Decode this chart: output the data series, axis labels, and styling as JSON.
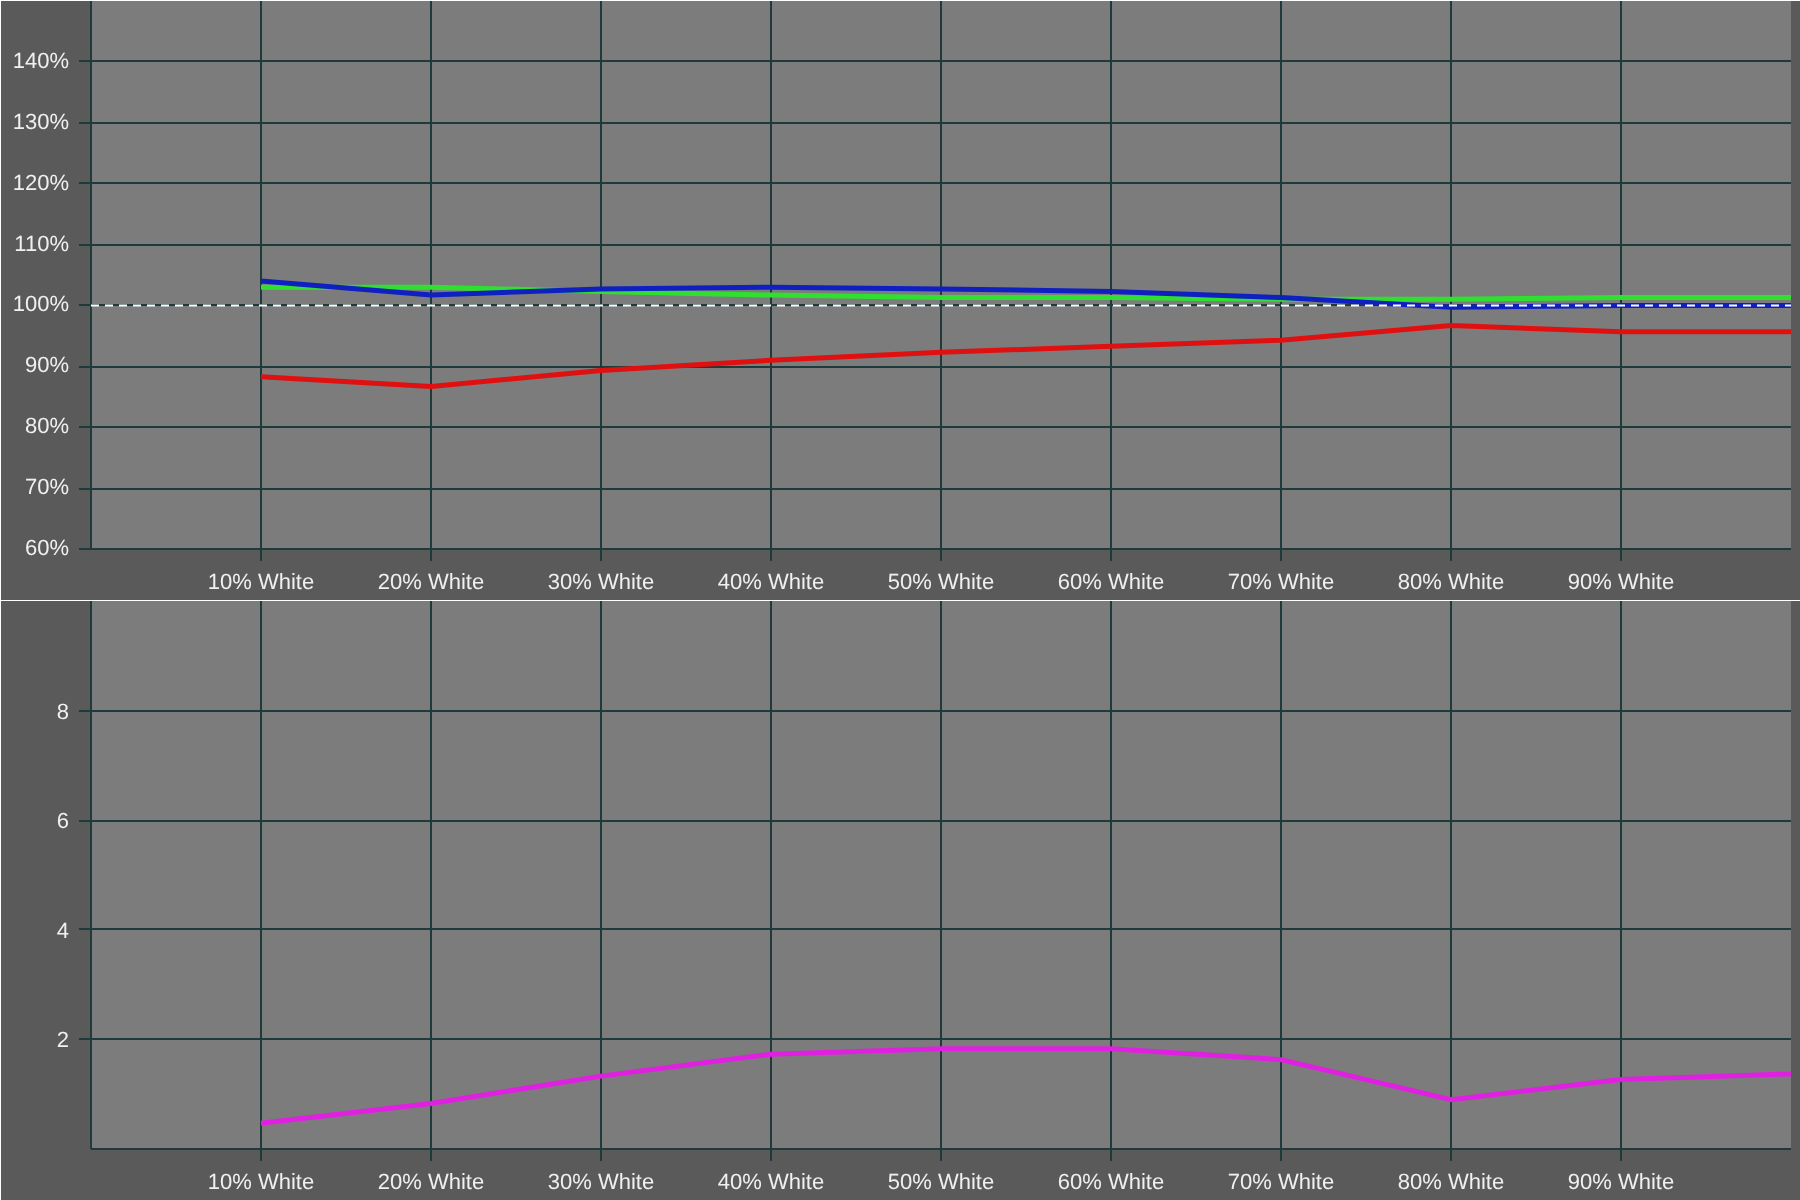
{
  "chart_data": [
    {
      "type": "line",
      "x": [
        10,
        20,
        30,
        40,
        50,
        60,
        70,
        80,
        90,
        100
      ],
      "xlim": [
        0,
        100
      ],
      "xticks": [
        {
          "value": 10,
          "label": "10% White"
        },
        {
          "value": 20,
          "label": "20% White"
        },
        {
          "value": 30,
          "label": "30% White"
        },
        {
          "value": 40,
          "label": "40% White"
        },
        {
          "value": 50,
          "label": "50% White"
        },
        {
          "value": 60,
          "label": "60% White"
        },
        {
          "value": 70,
          "label": "70% White"
        },
        {
          "value": 80,
          "label": "80% White"
        },
        {
          "value": 90,
          "label": "90% White"
        }
      ],
      "ylim": [
        60,
        150
      ],
      "yticks": [
        {
          "value": 60,
          "label": "60%"
        },
        {
          "value": 70,
          "label": "70%"
        },
        {
          "value": 80,
          "label": "80%"
        },
        {
          "value": 90,
          "label": "90%"
        },
        {
          "value": 100,
          "label": "100%"
        },
        {
          "value": 110,
          "label": "110%"
        },
        {
          "value": 120,
          "label": "120%"
        },
        {
          "value": 130,
          "label": "130%"
        },
        {
          "value": 140,
          "label": "140%"
        }
      ],
      "grid": true,
      "line_style": "solid",
      "marker": "none",
      "ref_lines": [
        {
          "axis": "y",
          "value": 100,
          "label": null,
          "color": "#ffffff",
          "line_style": "dashed"
        }
      ],
      "series": [
        {
          "color": "#e01010",
          "values": [
            88.3,
            86.7,
            89.3,
            91,
            92.3,
            93.3,
            94.3,
            96.7,
            95.7,
            95.7
          ]
        },
        {
          "color": "#30e030",
          "values": [
            103,
            103,
            102.3,
            101.7,
            101.3,
            101.3,
            101,
            101,
            101.3,
            101.3
          ]
        },
        {
          "color": "#1020c0",
          "values": [
            104,
            101.7,
            102.7,
            103,
            102.7,
            102.3,
            101.3,
            99.7,
            100,
            100
          ]
        }
      ]
    },
    {
      "type": "line",
      "x": [
        10,
        20,
        30,
        40,
        50,
        60,
        70,
        80,
        90,
        100
      ],
      "xlim": [
        0,
        100
      ],
      "xticks": [
        {
          "value": 10,
          "label": "10% White"
        },
        {
          "value": 20,
          "label": "20% White"
        },
        {
          "value": 30,
          "label": "30% White"
        },
        {
          "value": 40,
          "label": "40% White"
        },
        {
          "value": 50,
          "label": "50% White"
        },
        {
          "value": 60,
          "label": "60% White"
        },
        {
          "value": 70,
          "label": "70% White"
        },
        {
          "value": 80,
          "label": "80% White"
        },
        {
          "value": 90,
          "label": "90% White"
        }
      ],
      "ylim": [
        0,
        10
      ],
      "yticks": [
        2,
        4,
        6,
        8
      ],
      "grid": true,
      "line_style": "solid",
      "marker": "none",
      "series": [
        {
          "color": "#e020e0",
          "values": [
            0.47,
            0.83,
            1.33,
            1.73,
            1.83,
            1.83,
            1.63,
            0.9,
            1.27,
            1.37
          ]
        }
      ]
    }
  ]
}
